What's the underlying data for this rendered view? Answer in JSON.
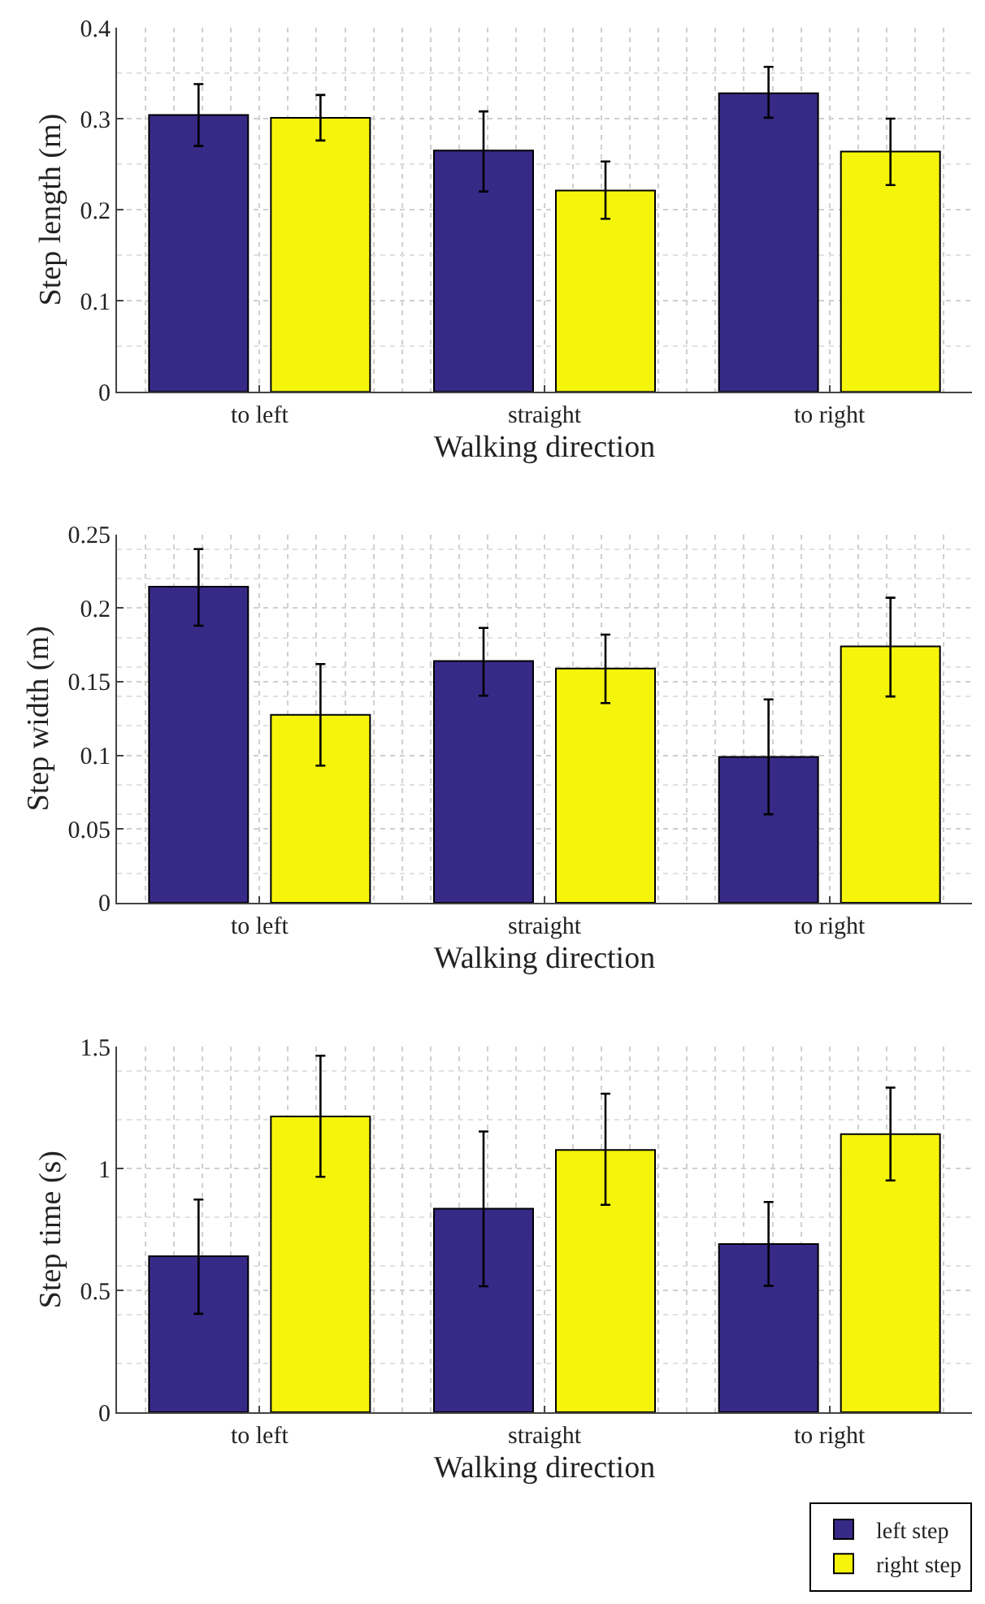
{
  "chart_data": [
    {
      "type": "bar",
      "xlabel": "Walking direction",
      "ylabel": "Step length (m)",
      "categories": [
        "to left",
        "straight",
        "to right"
      ],
      "ylim": [
        0,
        0.4
      ],
      "yticks": [
        0,
        0.1,
        0.2,
        0.3,
        0.4
      ],
      "grid": true,
      "series": [
        {
          "color": "#372a87",
          "values": [
            0.304,
            0.265,
            0.328
          ],
          "errors": [
            [
              0.27,
              0.338
            ],
            [
              0.22,
              0.308
            ],
            [
              0.301,
              0.357
            ]
          ]
        },
        {
          "color": "#f5f50c",
          "values": [
            0.301,
            0.221,
            0.264
          ],
          "errors": [
            [
              0.276,
              0.326
            ],
            [
              0.19,
              0.253
            ],
            [
              0.227,
              0.3
            ]
          ]
        }
      ]
    },
    {
      "type": "bar",
      "xlabel": "Walking direction",
      "ylabel": "Step width (m)",
      "categories": [
        "to left",
        "straight",
        "to right"
      ],
      "ylim": [
        0,
        0.25
      ],
      "yticks": [
        0,
        0.05,
        0.1,
        0.15,
        0.2,
        0.25
      ],
      "grid": true,
      "series": [
        {
          "color": "#372a87",
          "values": [
            0.2145,
            0.164,
            0.099
          ],
          "errors": [
            [
              0.188,
              0.24
            ],
            [
              0.1405,
              0.1865
            ],
            [
              0.06,
              0.138
            ]
          ]
        },
        {
          "color": "#f5f50c",
          "values": [
            0.1275,
            0.159,
            0.174
          ],
          "errors": [
            [
              0.093,
              0.162
            ],
            [
              0.1355,
              0.182
            ],
            [
              0.14,
              0.207
            ]
          ]
        }
      ]
    },
    {
      "type": "bar",
      "xlabel": "Walking direction",
      "ylabel": "Step time (s)",
      "categories": [
        "to left",
        "straight",
        "to right"
      ],
      "ylim": [
        0,
        1.5
      ],
      "yticks": [
        0,
        0.5,
        1,
        1.5
      ],
      "grid": true,
      "legend": "bottom right",
      "series": [
        {
          "name": "left step",
          "color": "#372a87",
          "values": [
            0.64,
            0.835,
            0.69
          ],
          "errors": [
            [
              0.404,
              0.873
            ],
            [
              0.517,
              1.152
            ],
            [
              0.519,
              0.863
            ]
          ]
        },
        {
          "name": "right step",
          "color": "#f5f50c",
          "values": [
            1.214,
            1.076,
            1.141
          ],
          "errors": [
            [
              0.966,
              1.463
            ],
            [
              0.851,
              1.307
            ],
            [
              0.951,
              1.332
            ]
          ]
        }
      ]
    }
  ]
}
